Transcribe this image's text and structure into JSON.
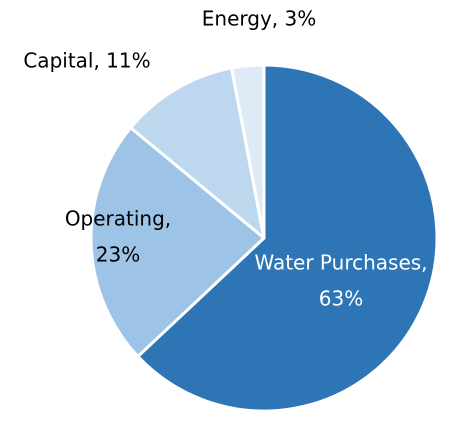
{
  "chart_data": {
    "type": "pie",
    "labels": [
      [
        "Water Purchases,",
        "63%"
      ],
      [
        "Operating,",
        "23%"
      ],
      [
        "Capital, 11%"
      ],
      [
        "Energy, 3%"
      ]
    ],
    "values": [
      63,
      23,
      11,
      3
    ],
    "colors": [
      "#2e75b6",
      "#9dc3e6",
      "#bdd7ee",
      "#deebf7"
    ],
    "label_colors": [
      "#ffffff",
      "#000000",
      "#000000",
      "#000000"
    ]
  }
}
